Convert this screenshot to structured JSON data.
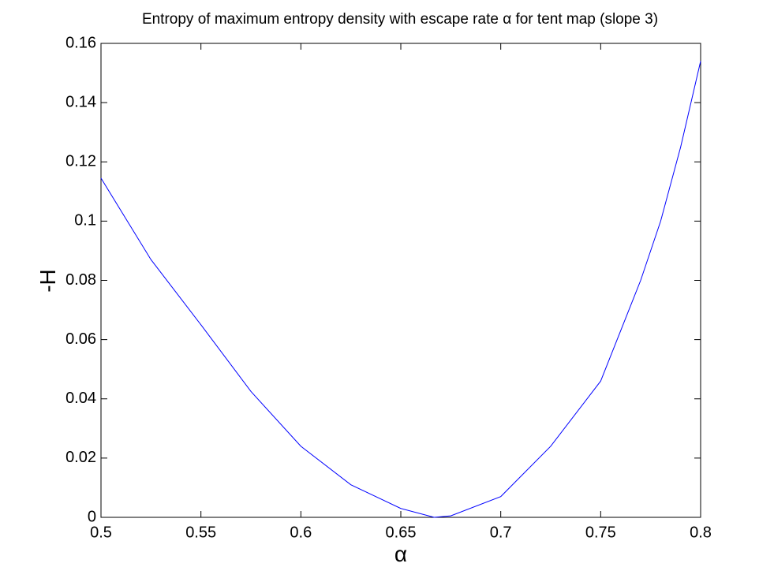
{
  "chart_data": {
    "type": "line",
    "title": "Entropy of maximum entropy density with escape rate α for tent map (slope 3)",
    "x_label": "α",
    "y_label": "-H",
    "x": [
      0.5,
      0.525,
      0.55,
      0.575,
      0.6,
      0.625,
      0.65,
      0.6667,
      0.675,
      0.7,
      0.725,
      0.75,
      0.77,
      0.78,
      0.79,
      0.8
    ],
    "series": [
      {
        "name": "-H",
        "color": "#0000ff",
        "values": [
          0.1145,
          0.087,
          0.065,
          0.0425,
          0.024,
          0.011,
          0.003,
          0,
          0.0005,
          0.007,
          0.024,
          0.046,
          0.08,
          0.1,
          0.125,
          0.154
        ]
      }
    ],
    "xlim": [
      0.5,
      0.8
    ],
    "xticks": [
      0.5,
      0.55,
      0.6,
      0.65,
      0.7,
      0.75,
      0.8
    ],
    "ylim": [
      0,
      0.16
    ],
    "yticks": [
      0,
      0.02,
      0.04,
      0.06,
      0.08,
      0.1,
      0.12,
      0.14,
      0.16
    ]
  }
}
